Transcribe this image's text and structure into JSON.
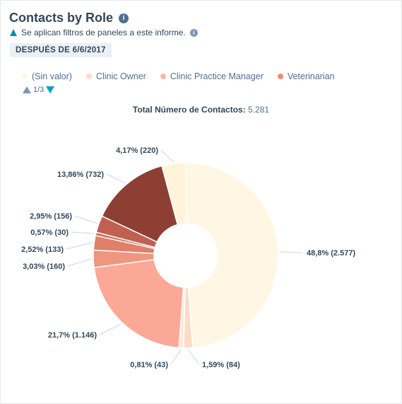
{
  "header": {
    "title": "Contacts by Role",
    "filter_notice": "Se aplican filtros de paneles a este informe.",
    "date_badge": "DESPUÉS DE 6/6/2017"
  },
  "legend": {
    "items": [
      {
        "label": "(Sin valor)",
        "color": "#fff7e3"
      },
      {
        "label": "Clinic Owner",
        "color": "#fcdcc8"
      },
      {
        "label": "Clinic Practice Manager",
        "color": "#fcb8a4"
      },
      {
        "label": "Veterinarian",
        "color": "#ec8c76"
      }
    ],
    "page": "1/3"
  },
  "total": {
    "label": "Total Número de Contactos:",
    "value": "5.281"
  },
  "chart_data": {
    "type": "pie",
    "donut": true,
    "total": 5281,
    "slices": [
      {
        "label": "48,8% (2.577)",
        "value": 2577,
        "percent": 48.8,
        "color": "#fff7e3"
      },
      {
        "label": "1,59% (84)",
        "value": 84,
        "percent": 1.59,
        "color": "#fcdcc8"
      },
      {
        "label": "0,81% (43)",
        "value": 43,
        "percent": 0.81,
        "color": "#fde9dc"
      },
      {
        "label": "21,7% (1.146)",
        "value": 1146,
        "percent": 21.7,
        "color": "#fca896"
      },
      {
        "label": "3,03% (160)",
        "value": 160,
        "percent": 3.03,
        "color": "#ee9680"
      },
      {
        "label": "2,52% (133)",
        "value": 133,
        "percent": 2.52,
        "color": "#e08068"
      },
      {
        "label": "0,57% (30)",
        "value": 30,
        "percent": 0.57,
        "color": "#cf6c58"
      },
      {
        "label": "2,95% (156)",
        "value": 156,
        "percent": 2.95,
        "color": "#c06050"
      },
      {
        "label": "13,86% (732)",
        "value": 732,
        "percent": 13.86,
        "color": "#8e3f33"
      },
      {
        "label": "4,17% (220)",
        "value": 220,
        "percent": 4.17,
        "color": "#fff3d9"
      }
    ]
  }
}
